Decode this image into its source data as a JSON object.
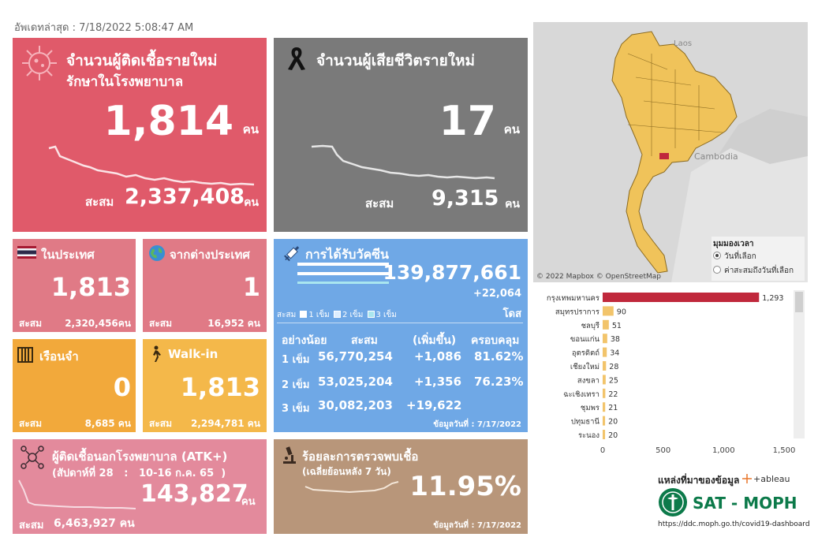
{
  "updated": "อัพเดทล่าสุด : 7/18/2022 5:08:47 AM",
  "new_cases": {
    "title": "จำนวนผู้ติดเชื้อรายใหม่",
    "subtitle": "รักษาในโรงพยาบาล",
    "value": "1,814",
    "unit": "คน",
    "cum_label": "สะสม",
    "cum_value": "2,337,408",
    "cum_unit": "คน",
    "color": "#e05a6a"
  },
  "new_deaths": {
    "title": "จำนวนผู้เสียชีวิตรายใหม่",
    "value": "17",
    "unit": "คน",
    "cum_label": "สะสม",
    "cum_value": "9,315",
    "cum_unit": "คน",
    "color": "#7a7a7a"
  },
  "domestic": {
    "title": "ในประเทศ",
    "value": "1,813",
    "cum_label": "สะสม",
    "cum_value": "2,320,456คน"
  },
  "foreign": {
    "title": "จากต่างประเทศ",
    "value": "1",
    "cum_label": "สะสม",
    "cum_value": "16,952 คน"
  },
  "prison": {
    "title": "เรือนจำ",
    "value": "0",
    "cum_label": "สะสม",
    "cum_value": "8,685 คน"
  },
  "walkin": {
    "title": "Walk-in",
    "value": "1,813",
    "cum_label": "สะสม",
    "cum_value": "2,294,781 คน"
  },
  "vaccine": {
    "title": "การได้รับวัคซีน",
    "total": "139,877,661",
    "delta": "+22,064",
    "unit": "โดส",
    "legend_prefix": "สะสม",
    "legend": [
      "1 เข็ม",
      "2 เข็ม",
      "3 เข็ม"
    ],
    "headers": [
      "อย่างน้อย",
      "สะสม",
      "(เพิ่มขึ้น)",
      "ครอบคลุม"
    ],
    "rows": [
      {
        "dose": "1 เข็ม",
        "cum": "56,770,254",
        "inc": "+1,086",
        "cov": "81.62%"
      },
      {
        "dose": "2 เข็ม",
        "cum": "53,025,204",
        "inc": "+1,356",
        "cov": "76.23%"
      },
      {
        "dose": "3 เข็ม",
        "cum": "30,082,203",
        "inc": "+19,622",
        "cov": ""
      }
    ],
    "data_date": "ข้อมูลวันที่ : 7/17/2022"
  },
  "atk": {
    "title": "ผู้ติดเชื้อนอกโรงพยาบาล (ATK+)",
    "week": "(สัปดาห์ที่ 28   :   10-16 ก.ค. 65  )",
    "value": "143,827",
    "unit": "คน",
    "cum_label": "สะสม",
    "cum_value": "6,463,927 คน"
  },
  "positivity": {
    "title": "ร้อยละการตรวจพบเชื้อ",
    "subtitle": "(เฉลี่ยย้อนหลัง 7 วัน)",
    "value": "11.95%",
    "data_date": "ข้อมูลวันที่ : 7/17/2022"
  },
  "map": {
    "labels": [
      "Laos",
      "Cambodia"
    ],
    "credit": "© 2022 Mapbox  © OpenStreetMap",
    "view_title": "มุมมองเวลา",
    "view_options": [
      "วันที่เลือก",
      "ค่าสะสมถึงวันที่เลือก"
    ]
  },
  "source": {
    "label": "แหล่งที่มาของข้อมูล",
    "tableau": "+ableau",
    "org": "SAT - MOPH",
    "url": "https://ddc.moph.go.th/covid19-dashboard"
  },
  "chart_data": {
    "type": "bar",
    "orientation": "horizontal",
    "categories": [
      "กรุงเทพมหานคร",
      "สมุทรปราการ",
      "ชลบุรี",
      "ขอนแก่น",
      "อุตรดิตถ์",
      "เชียงใหม่",
      "สงขลา",
      "ฉะเชิงเทรา",
      "ชุมพร",
      "ปทุมธานี",
      "ระนอง"
    ],
    "values": [
      1293,
      90,
      51,
      38,
      34,
      28,
      25,
      22,
      21,
      20,
      20
    ],
    "value_labels": [
      "1,293",
      "90",
      "51",
      "38",
      "34",
      "28",
      "25",
      "22",
      "21",
      "20",
      "20"
    ],
    "xlim": [
      0,
      1500
    ],
    "xticks": [
      "0",
      "500",
      "1,000",
      "1,500"
    ],
    "colors": {
      "top": "#c0283c",
      "rest": "#f2c46b"
    }
  }
}
